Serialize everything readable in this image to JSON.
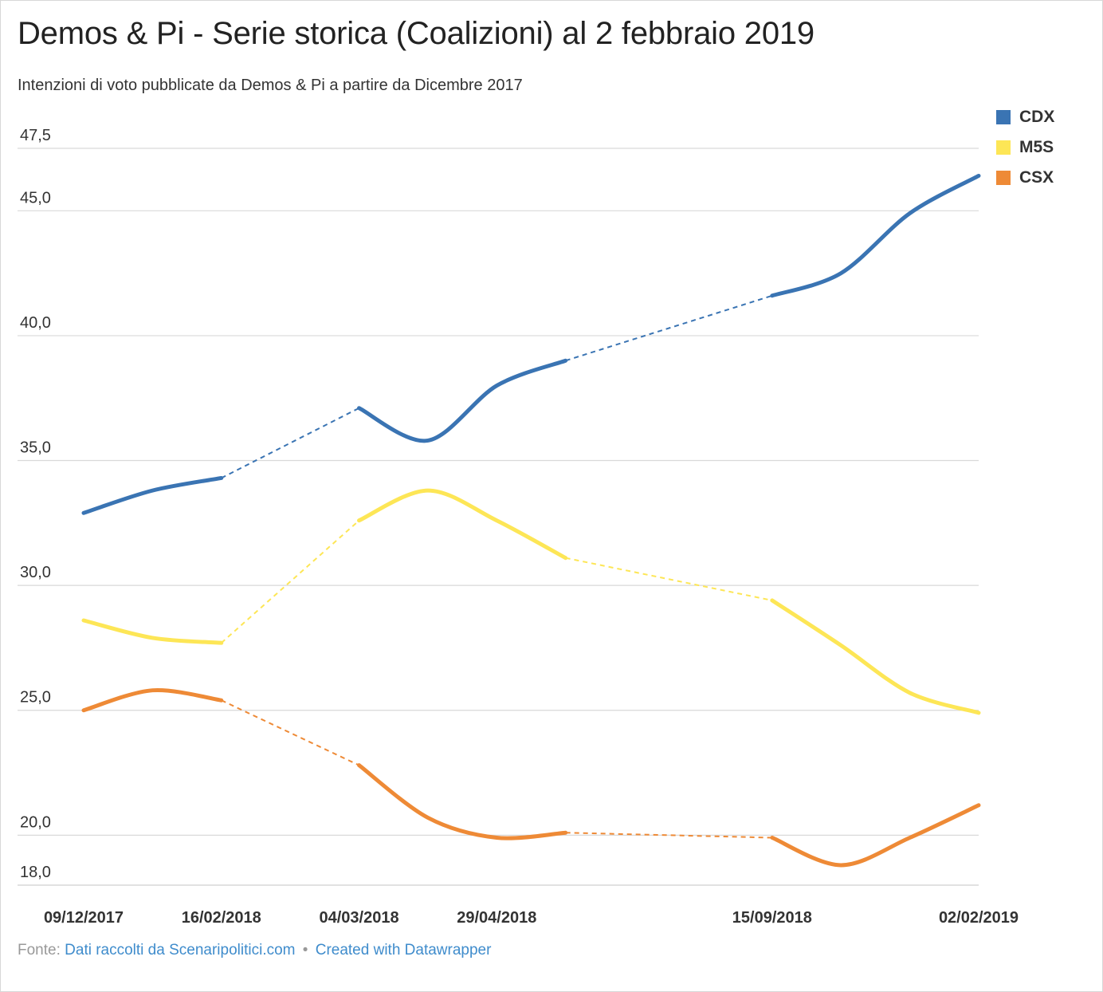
{
  "chart_data": {
    "type": "line",
    "title": "Demos & Pi - Serie storica (Coalizioni) al 2 febbraio 2019",
    "subtitle": "Intenzioni di voto pubblicate da Demos & Pi a partire da Dicembre 2017",
    "xlabel": "",
    "ylabel": "",
    "ylim": [
      18.0,
      47.5
    ],
    "y_ticks": [
      "47,5",
      "45,0",
      "40,0",
      "35,0",
      "30,0",
      "25,0",
      "20,0",
      "18,0"
    ],
    "y_tick_values": [
      47.5,
      45.0,
      40.0,
      35.0,
      30.0,
      25.0,
      20.0,
      18.0
    ],
    "x_tick_labels": [
      "09/12/2017",
      "16/02/2018",
      "04/03/2018",
      "29/04/2018",
      "15/09/2018",
      "02/02/2019"
    ],
    "x_tick_index": [
      0,
      2,
      4,
      6,
      10,
      13
    ],
    "x_count": 14,
    "grid": true,
    "legend_position": "top-right",
    "dashed_gaps": [
      [
        2,
        4
      ],
      [
        7,
        10
      ]
    ],
    "series": [
      {
        "name": "CDX",
        "color": "#3a74b3",
        "values": [
          32.9,
          33.8,
          34.3,
          null,
          37.1,
          35.8,
          38.0,
          39.0,
          null,
          null,
          41.6,
          42.5,
          44.9,
          46.4
        ]
      },
      {
        "name": "M5S",
        "color": "#fde656",
        "values": [
          28.6,
          27.9,
          27.7,
          null,
          32.6,
          33.8,
          32.6,
          31.1,
          null,
          null,
          29.4,
          27.6,
          25.7,
          24.9
        ]
      },
      {
        "name": "CSX",
        "color": "#ee8a36",
        "values": [
          25.0,
          25.8,
          25.4,
          null,
          22.8,
          20.7,
          19.9,
          20.1,
          null,
          null,
          19.9,
          18.8,
          19.9,
          21.2
        ]
      }
    ]
  },
  "footer": {
    "source_prefix": "Fonte:",
    "source_link": "Dati raccolti da Scenaripolitici.com",
    "separator": "•",
    "credit_link": "Created with Datawrapper"
  }
}
